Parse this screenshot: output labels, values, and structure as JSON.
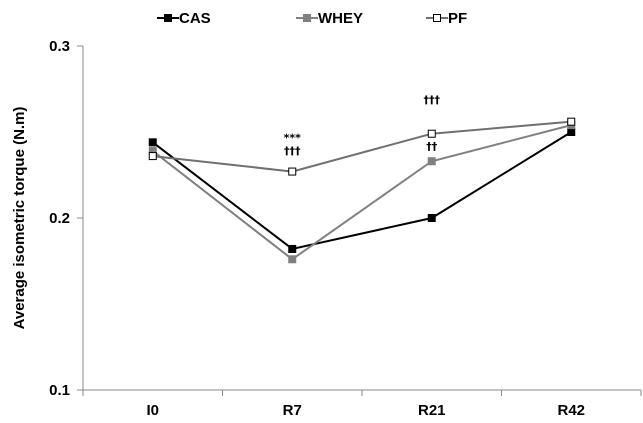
{
  "chart_data": {
    "type": "line",
    "categories": [
      "I0",
      "R7",
      "R21",
      "R42"
    ],
    "ylabel": "Average isometric torque (N.m)",
    "ylim": [
      0.1,
      0.3
    ],
    "yticks": [
      "0.1",
      "0.2",
      "0.3"
    ],
    "ytick_values": [
      0.1,
      0.2,
      0.3
    ],
    "grid": false,
    "legend_position": "top",
    "series": [
      {
        "name": "CAS",
        "values": [
          0.244,
          0.182,
          0.2,
          0.25
        ],
        "color": "#000000",
        "marker": "filled-square"
      },
      {
        "name": "WHEY",
        "values": [
          0.239,
          0.176,
          0.233,
          0.254
        ],
        "color": "#808080",
        "marker": "filled-square"
      },
      {
        "name": "PF",
        "values": [
          0.236,
          0.227,
          0.249,
          0.256
        ],
        "color": "#707070",
        "marker": "open-square"
      }
    ],
    "annotations": [
      {
        "text": "***",
        "category": "R7",
        "row": 0
      },
      {
        "text": "†††",
        "category": "R7",
        "row": 1
      },
      {
        "text": "†††",
        "category": "R21",
        "row": 0
      },
      {
        "text": "††",
        "category": "R21",
        "row": 1
      }
    ]
  }
}
